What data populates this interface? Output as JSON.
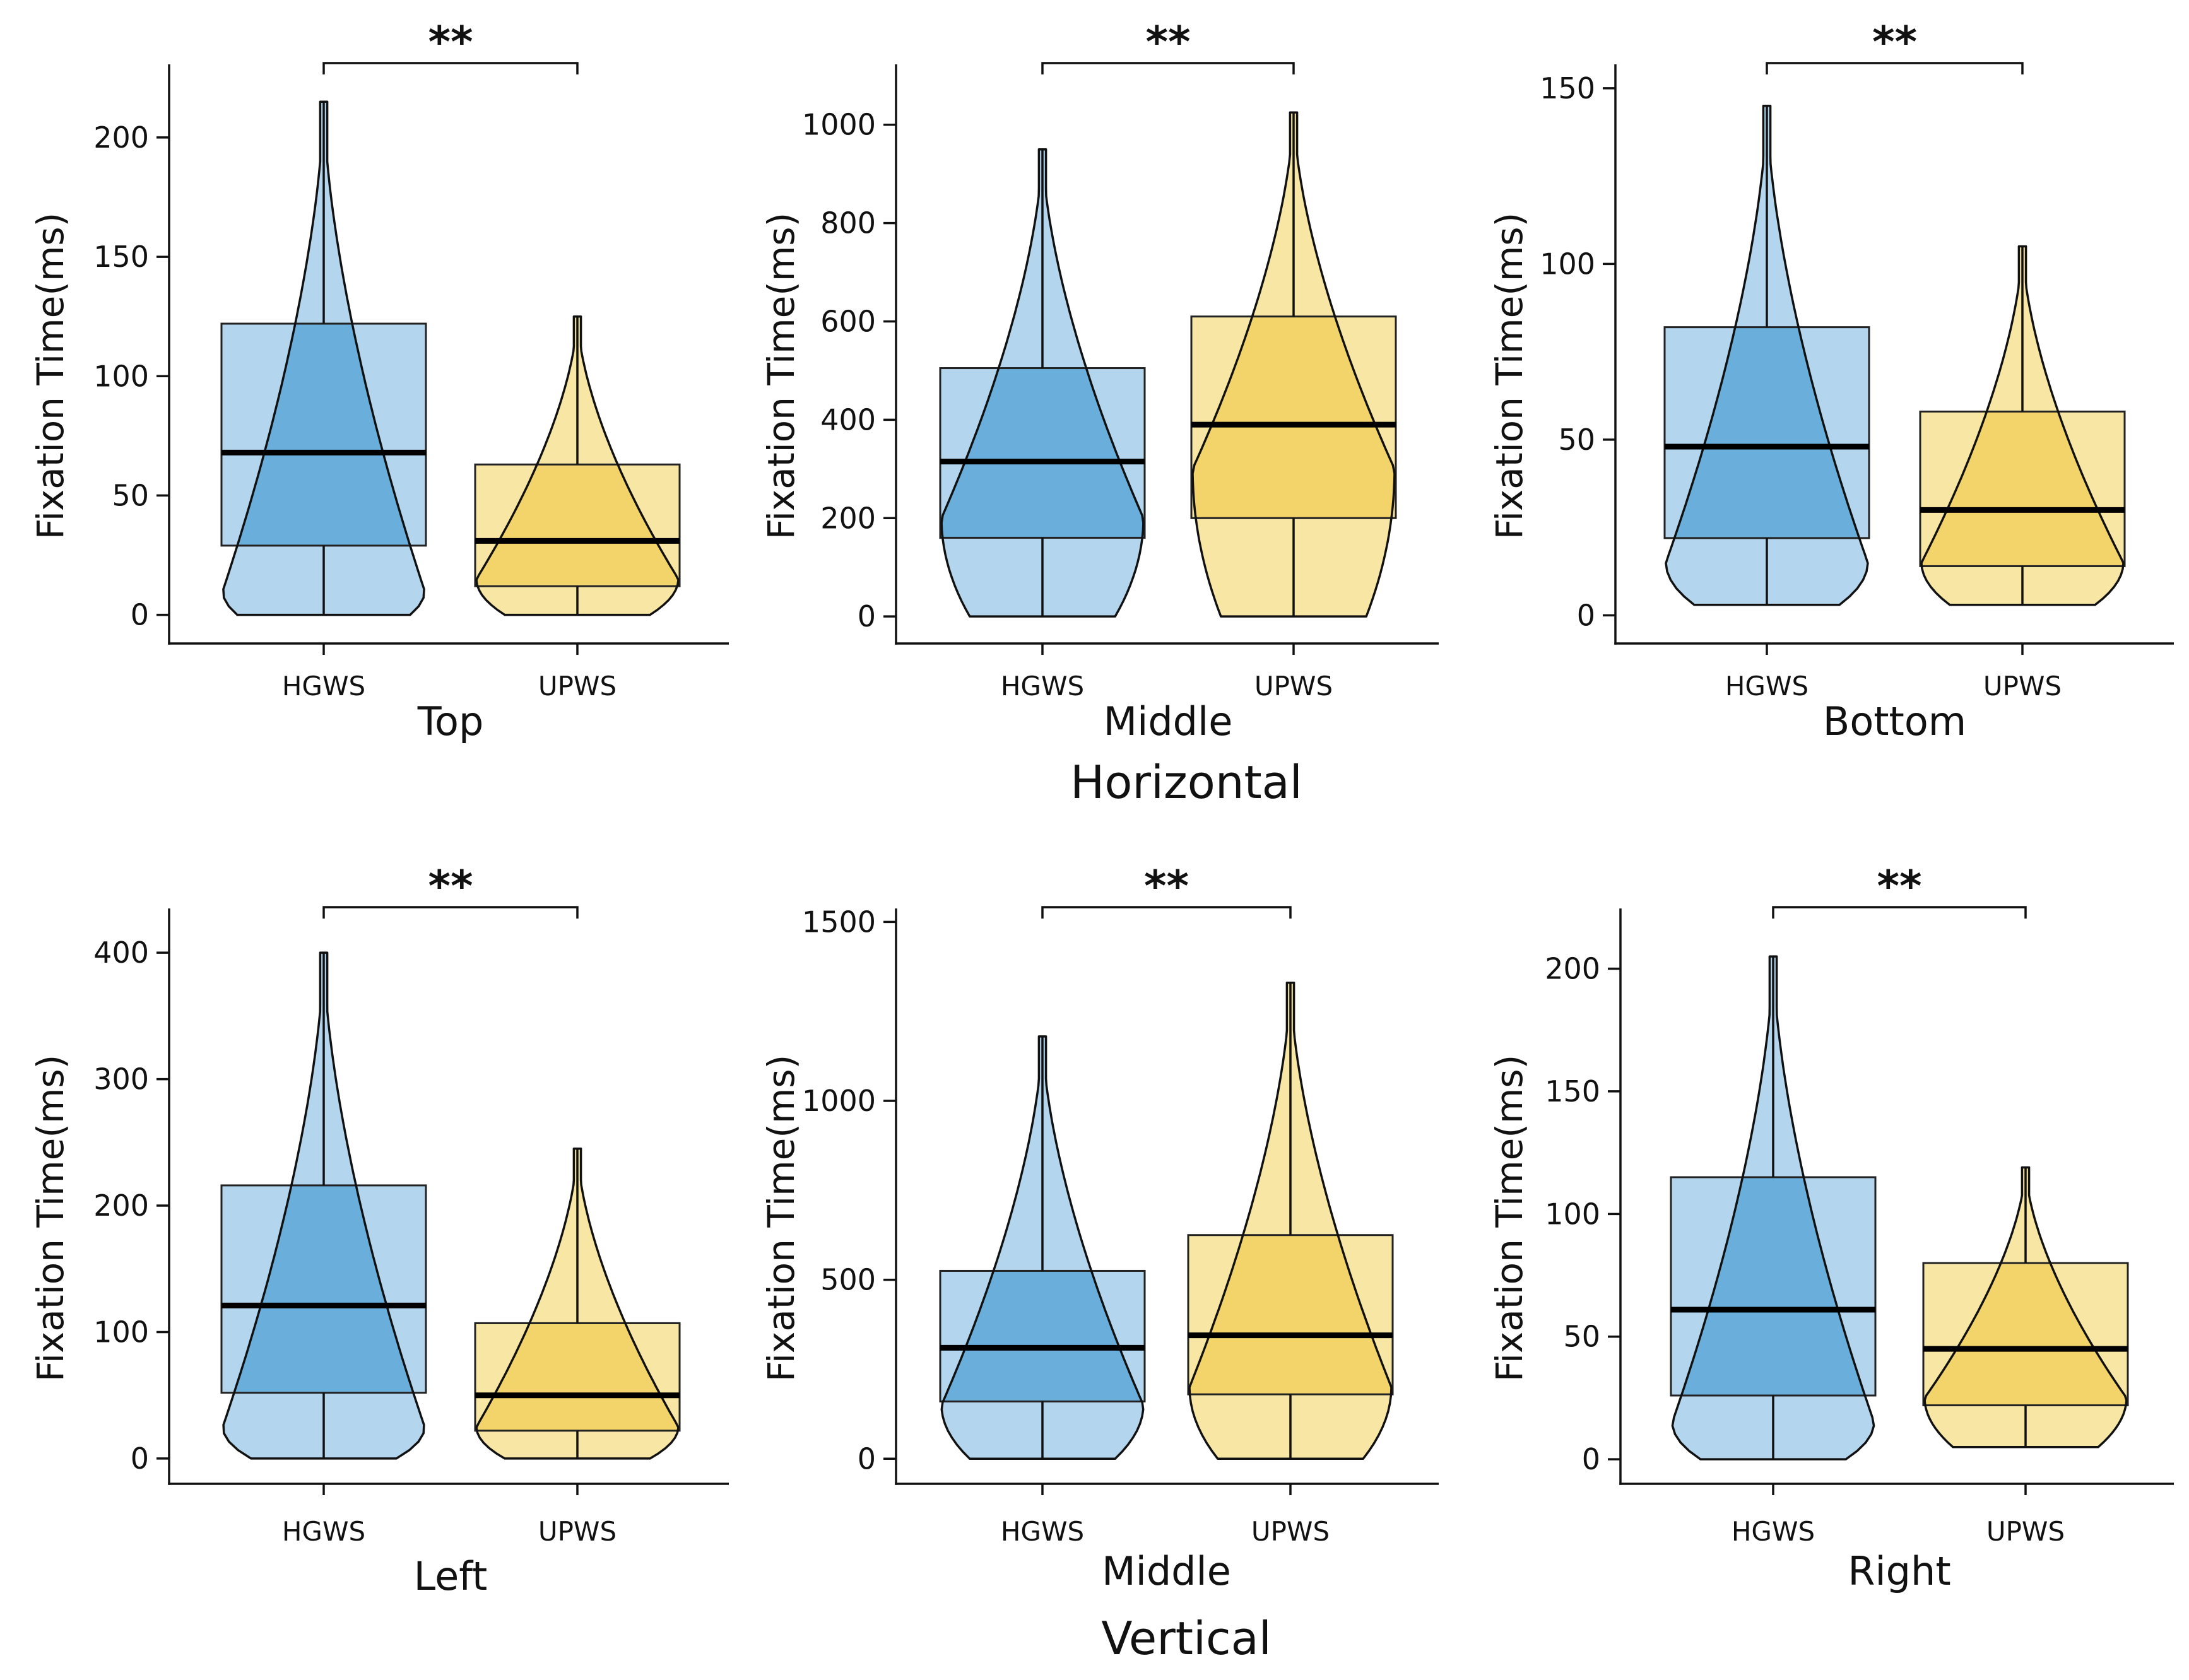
{
  "figure": {
    "group_labels": [
      "Horizontal",
      "Vertical"
    ],
    "colors": {
      "HGWS_violin": "#6aaedb",
      "HGWS_box": "#b3d5ee",
      "UPWS_violin": "#f3d46b",
      "UPWS_box": "#f8e7a4",
      "stroke": "#111111"
    }
  },
  "chart_data": [
    {
      "type": "violin-box",
      "title": "",
      "group": "Horizontal",
      "xlabel": "Top",
      "ylabel": "Fixation Time(ms)",
      "ylim": [
        -12,
        228
      ],
      "yticks": [
        0,
        50,
        100,
        150,
        200
      ],
      "categories": [
        "HGWS",
        "UPWS"
      ],
      "significance": "**",
      "series": [
        {
          "name": "HGWS",
          "min": 0,
          "q1": 29,
          "median": 68,
          "q3": 122,
          "max": 215,
          "peak_density_value": 10
        },
        {
          "name": "UPWS",
          "min": 0,
          "q1": 12,
          "median": 31,
          "q3": 63,
          "max": 125,
          "peak_density_value": 15
        }
      ]
    },
    {
      "type": "violin-box",
      "title": "",
      "group": "Horizontal",
      "xlabel": "Middle",
      "ylabel": "Fixation Time(ms)",
      "ylim": [
        -55,
        1110
      ],
      "yticks": [
        0,
        200,
        400,
        600,
        800,
        1000
      ],
      "categories": [
        "HGWS",
        "UPWS"
      ],
      "significance": "**",
      "series": [
        {
          "name": "HGWS",
          "min": 0,
          "q1": 160,
          "median": 315,
          "q3": 505,
          "max": 950,
          "peak_density_value": 200
        },
        {
          "name": "UPWS",
          "min": 0,
          "q1": 200,
          "median": 390,
          "q3": 610,
          "max": 1025,
          "peak_density_value": 300
        }
      ]
    },
    {
      "type": "violin-box",
      "title": "",
      "group": "Horizontal",
      "xlabel": "Bottom",
      "ylabel": "Fixation Time(ms)",
      "ylim": [
        -8,
        155
      ],
      "yticks": [
        0,
        50,
        100,
        150
      ],
      "categories": [
        "HGWS",
        "UPWS"
      ],
      "significance": "**",
      "series": [
        {
          "name": "HGWS",
          "min": 3,
          "q1": 22,
          "median": 48,
          "q3": 82,
          "max": 145,
          "peak_density_value": 15
        },
        {
          "name": "UPWS",
          "min": 3,
          "q1": 14,
          "median": 30,
          "q3": 58,
          "max": 105,
          "peak_density_value": 15
        }
      ]
    },
    {
      "type": "violin-box",
      "title": "",
      "group": "Vertical",
      "xlabel": "Left",
      "ylabel": "Fixation Time(ms)",
      "ylim": [
        -20,
        430
      ],
      "yticks": [
        0,
        100,
        200,
        300,
        400
      ],
      "categories": [
        "HGWS",
        "UPWS"
      ],
      "significance": "**",
      "series": [
        {
          "name": "HGWS",
          "min": 0,
          "q1": 52,
          "median": 121,
          "q3": 216,
          "max": 400,
          "peak_density_value": 25
        },
        {
          "name": "UPWS",
          "min": 0,
          "q1": 22,
          "median": 50,
          "q3": 107,
          "max": 245,
          "peak_density_value": 25
        }
      ]
    },
    {
      "type": "violin-box",
      "title": "",
      "group": "Vertical",
      "xlabel": "Middle",
      "ylabel": "Fixation Time(ms)",
      "ylim": [
        -70,
        1520
      ],
      "yticks": [
        0,
        500,
        1000,
        1500
      ],
      "categories": [
        "HGWS",
        "UPWS"
      ],
      "significance": "**",
      "series": [
        {
          "name": "HGWS",
          "min": 0,
          "q1": 160,
          "median": 310,
          "q3": 525,
          "max": 1180,
          "peak_density_value": 150
        },
        {
          "name": "UPWS",
          "min": 0,
          "q1": 180,
          "median": 345,
          "q3": 625,
          "max": 1330,
          "peak_density_value": 200
        }
      ]
    },
    {
      "type": "violin-box",
      "title": "",
      "group": "Vertical",
      "xlabel": "Right",
      "ylabel": "Fixation Time(ms)",
      "ylim": [
        -10,
        222
      ],
      "yticks": [
        0,
        50,
        100,
        150,
        200
      ],
      "categories": [
        "HGWS",
        "UPWS"
      ],
      "significance": "**",
      "series": [
        {
          "name": "HGWS",
          "min": 0,
          "q1": 26,
          "median": 61,
          "q3": 115,
          "max": 205,
          "peak_density_value": 15
        },
        {
          "name": "UPWS",
          "min": 5,
          "q1": 22,
          "median": 45,
          "q3": 80,
          "max": 119,
          "peak_density_value": 25
        }
      ]
    }
  ]
}
